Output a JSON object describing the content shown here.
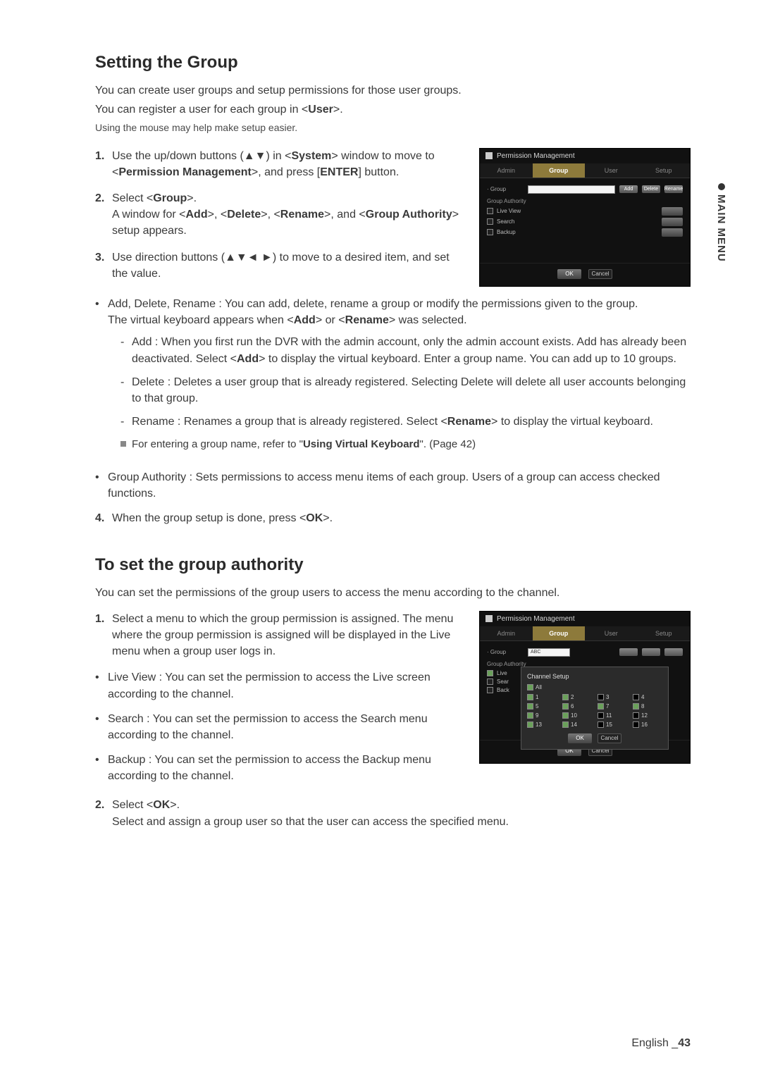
{
  "side_tab": "MAIN MENU",
  "s1": {
    "title": "Setting the Group",
    "p1": "You can create user groups and setup permissions for those user groups.",
    "p2_a": "You can register a user for each group in <",
    "p2_b": "User",
    "p2_c": ">.",
    "note": "Using the mouse may help make setup easier.",
    "step1_a": "Use the up/down buttons (▲▼) in <",
    "step1_b": "System",
    "step1_c": "> window to move to <",
    "step1_d": "Permission Management",
    "step1_e": ">, and press [",
    "step1_f": "ENTER",
    "step1_g": "] button.",
    "step2_a": "Select <",
    "step2_b": "Group",
    "step2_c": ">.",
    "step2_d": "A window for <",
    "step2_e": "Add",
    "step2_f": ">, <",
    "step2_g": "Delete",
    "step2_h": ">, <",
    "step2_i": "Rename",
    "step2_j": ">, and <",
    "step2_k": "Group Authority",
    "step2_l": "> setup appears.",
    "step3": "Use direction buttons (▲▼◄ ►) to move to a desired item, and set the value.",
    "b1_a": "Add, Delete, Rename : You can add, delete, rename a group or modify the permissions given to the group.",
    "b1_b": "The virtual keyboard appears when <",
    "b1_c": "Add",
    "b1_d": "> or <",
    "b1_e": "Rename",
    "b1_f": "> was selected.",
    "d1_a": "Add : When you first run the DVR with the admin account, only the admin account exists. Add has already been deactivated. Select <",
    "d1_b": "Add",
    "d1_c": "> to display the virtual keyboard. Enter a group name. You can add up to 10 groups.",
    "d2": "Delete : Deletes a user group that is already registered. Selecting Delete will delete all user accounts belonging to that group.",
    "d3_a": "Rename : Renames a group that is already registered. Select <",
    "d3_b": "Rename",
    "d3_c": "> to display the virtual keyboard.",
    "ref_a": "For entering a group name, refer to \"",
    "ref_b": "Using Virtual Keyboard",
    "ref_c": "\". (Page 42)",
    "b2": "Group Authority : Sets permissions to access menu items of each group. Users of a group can access checked functions.",
    "step4_a": "When the group setup is done, press <",
    "step4_b": "OK",
    "step4_c": ">."
  },
  "s2": {
    "title": "To set the group authority",
    "intro": "You can set the permissions of the group users to access the menu according to the channel.",
    "step1": "Select a menu to which the group permission is assigned. The menu where the group permission is assigned will be displayed in the Live menu when a group user logs in.",
    "b1": "Live View : You can set the permission to access the Live screen according to the channel.",
    "b2": "Search : You can set the permission to access the Search menu according to the channel.",
    "b3": "Backup : You can set the permission to access the Backup menu according to the channel.",
    "step2_a": "Select <",
    "step2_b": "OK",
    "step2_c": ">.",
    "step2_d": "Select and assign a group user so that the user can access the specified menu."
  },
  "panels": {
    "title": "Permission Management",
    "tabs": [
      "Admin",
      "Group",
      "User",
      "Setup"
    ],
    "group_label": "Group",
    "side_btns": [
      "Add",
      "Delete",
      "Rename"
    ],
    "auth_label": "Group Authority",
    "auth_items": [
      "Live View",
      "Search",
      "Backup"
    ],
    "ok": "OK",
    "cancel": "Cancel",
    "dropdown_val": "ABC",
    "popup_title": "Channel Setup",
    "all": "All",
    "channels": [
      {
        "n": "1",
        "c": true
      },
      {
        "n": "2",
        "c": true
      },
      {
        "n": "3",
        "c": false
      },
      {
        "n": "4",
        "c": false
      },
      {
        "n": "5",
        "c": true
      },
      {
        "n": "6",
        "c": true
      },
      {
        "n": "7",
        "c": true
      },
      {
        "n": "8",
        "c": true
      },
      {
        "n": "9",
        "c": true
      },
      {
        "n": "10",
        "c": true
      },
      {
        "n": "11",
        "c": false
      },
      {
        "n": "12",
        "c": false
      },
      {
        "n": "13",
        "c": true
      },
      {
        "n": "14",
        "c": true
      },
      {
        "n": "15",
        "c": false
      },
      {
        "n": "16",
        "c": false
      }
    ]
  },
  "footer": {
    "lang": "English",
    "sep": "_",
    "page": "43"
  }
}
